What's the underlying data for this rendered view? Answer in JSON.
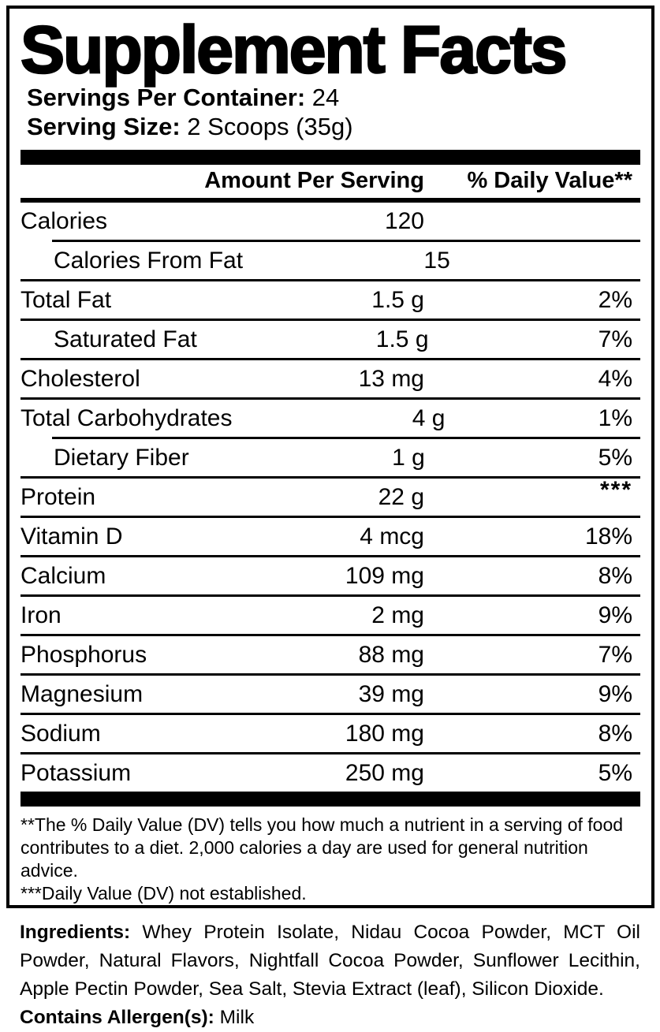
{
  "title": "Supplement Facts",
  "servings_per_container": {
    "label": "Servings Per Container:",
    "value": " 24"
  },
  "serving_size": {
    "label": "Serving Size:",
    "value": " 2 Scoops (35g)"
  },
  "table": {
    "header": {
      "amount": "Amount Per Serving",
      "dv": "% Daily Value**"
    },
    "rows": [
      {
        "label": "Calories",
        "amount": "120",
        "dv": ""
      },
      {
        "label": "Calories From Fat",
        "amount": "15",
        "dv": ""
      },
      {
        "label": "Total Fat",
        "amount": "1.5 g",
        "dv": "2%"
      },
      {
        "label": "Saturated Fat",
        "amount": "1.5 g",
        "dv": "7%"
      },
      {
        "label": "Cholesterol",
        "amount": "13 mg",
        "dv": "4%"
      },
      {
        "label": "Total Carbohydrates",
        "amount": "4 g",
        "dv": "1%"
      },
      {
        "label": "Dietary Fiber",
        "amount": "1 g",
        "dv": "5%"
      },
      {
        "label": "Protein",
        "amount": "22 g",
        "dv": "***"
      },
      {
        "label": "Vitamin D",
        "amount": "4 mcg",
        "dv": "18%"
      },
      {
        "label": "Calcium",
        "amount": "109 mg",
        "dv": "8%"
      },
      {
        "label": "Iron",
        "amount": "2 mg",
        "dv": "9%"
      },
      {
        "label": "Phosphorus",
        "amount": "88 mg",
        "dv": "7%"
      },
      {
        "label": "Magnesium",
        "amount": "39 mg",
        "dv": "9%"
      },
      {
        "label": "Sodium",
        "amount": "180 mg",
        "dv": "8%"
      },
      {
        "label": "Potassium",
        "amount": "250 mg",
        "dv": "5%"
      }
    ]
  },
  "footnotes": {
    "dv_note": "**The % Daily Value (DV) tells you how much a nutrient in a serving of food contributes to a diet. 2,000 calories a day are used for general nutrition advice.",
    "not_established": "***Daily Value (DV) not established."
  },
  "ingredients": {
    "label": "Ingredients:",
    "text": " Whey Protein Isolate, Nidau Cocoa Powder, MCT Oil Powder, Natural Flavors, Nightfall Cocoa Powder, Sunflower Lecithin, Apple Pectin Powder, Sea Salt, Stevia Extract (leaf), Silicon Dioxide."
  },
  "allergens": {
    "label": "Contains Allergen(s):",
    "value": " Milk"
  },
  "colors": {
    "ink": "#000000",
    "background": "#ffffff"
  }
}
